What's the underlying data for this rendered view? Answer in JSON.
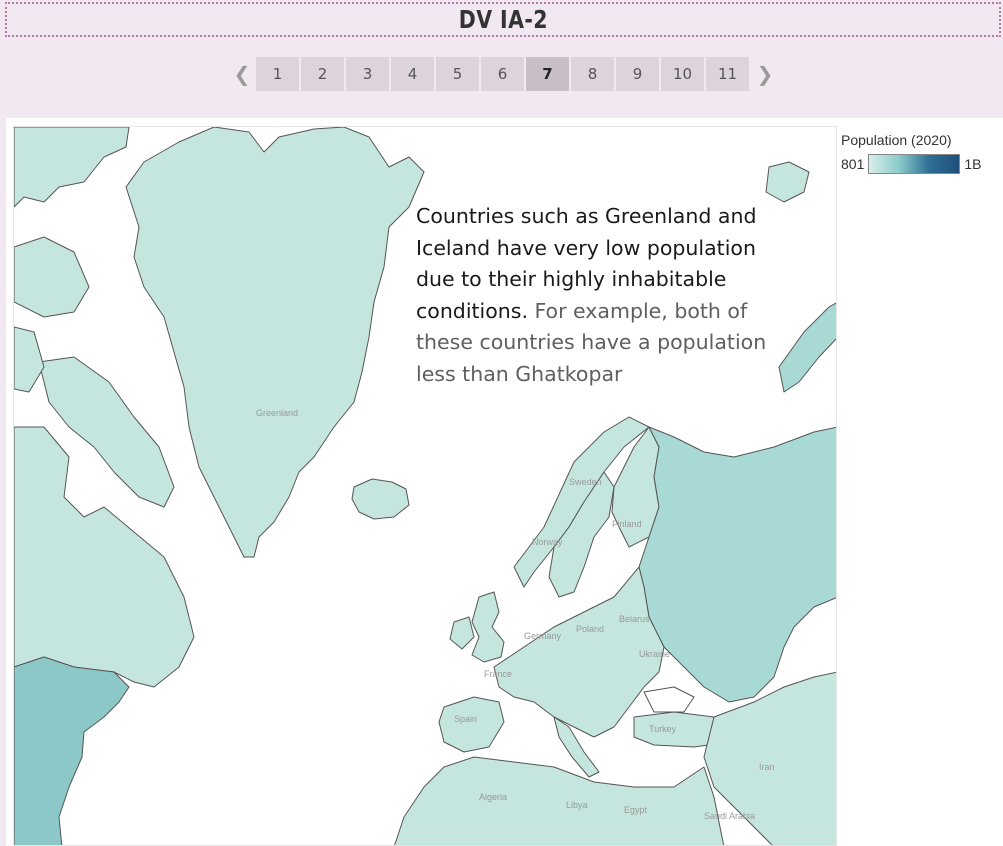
{
  "header": {
    "title": "DV IA-2"
  },
  "pager": {
    "prev_icon": "chevron-left-icon",
    "next_icon": "chevron-right-icon",
    "pages": [
      "1",
      "2",
      "3",
      "4",
      "5",
      "6",
      "7",
      "8",
      "9",
      "10",
      "11"
    ],
    "active_page": "7"
  },
  "legend": {
    "title": "Population (2020)",
    "min": "801",
    "max": "1B",
    "colors": [
      "#d8efea",
      "#1e4f79"
    ]
  },
  "annotation": {
    "part1": "Countries such as Greenland and Iceland have very low population due to their highly inhabitable conditions.",
    "part2": " For example, both of these countries have a population less than Ghatkopar"
  },
  "map": {
    "labels": {
      "greenland": "Greenland",
      "sweden": "Sweden",
      "finland": "Finland",
      "norway": "Norway",
      "poland": "Poland",
      "germany": "Germany",
      "belarus": "Belarus",
      "ukraine": "Ukraine",
      "france": "France",
      "spain": "Spain",
      "turkey": "Turkey",
      "iran": "Iran",
      "algeria": "Algeria",
      "libya": "Libya",
      "egypt": "Egypt",
      "saudi": "Saudi Arabia"
    },
    "colors": {
      "land": "#c5e6de",
      "russia": "#a9d9d5",
      "usa": "#8cc8c8",
      "border": "#555555",
      "water": "#ffffff"
    }
  }
}
